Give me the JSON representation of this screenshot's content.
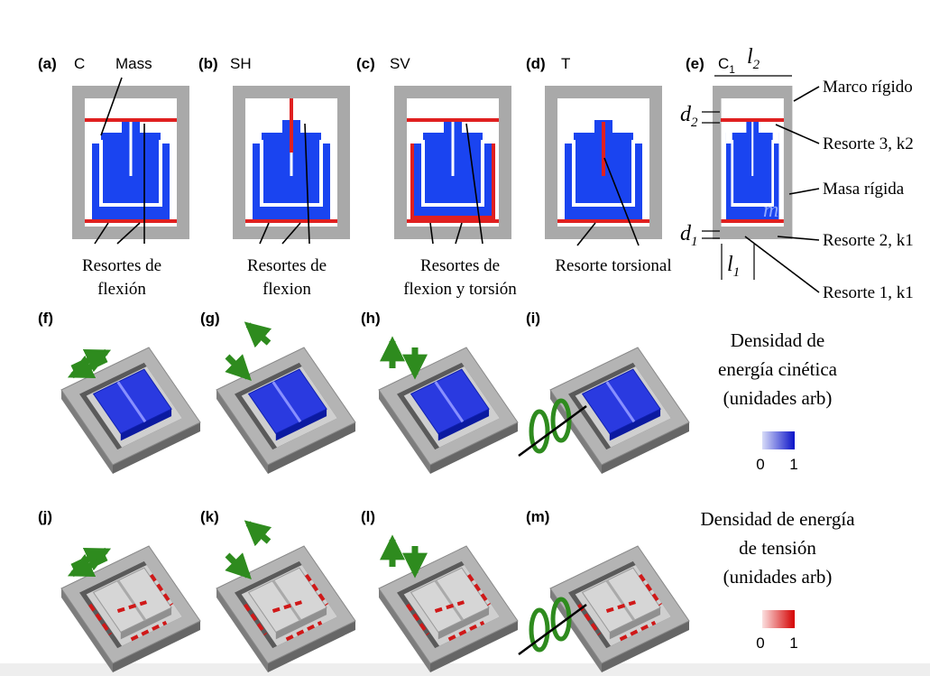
{
  "panels_top": [
    {
      "label": "(a)",
      "mode": "C",
      "note": "Mass",
      "caption": [
        "Resortes de",
        "flexión"
      ]
    },
    {
      "label": "(b)",
      "mode": "SH",
      "caption": [
        "Resortes de",
        "flexion"
      ]
    },
    {
      "label": "(c)",
      "mode": "SV",
      "caption": [
        "Resortes de",
        "flexion y torsión"
      ]
    },
    {
      "label": "(d)",
      "mode": "T",
      "caption": [
        "Resorte torsional"
      ]
    }
  ],
  "panel_e": {
    "label": "(e)",
    "mode": "C",
    "mode_sub": "1",
    "dims": [
      {
        "symbol": "l",
        "sub": "2"
      },
      {
        "symbol": "d",
        "sub": "2"
      },
      {
        "symbol": "d",
        "sub": "1"
      },
      {
        "symbol": "l",
        "sub": "1"
      }
    ],
    "mass_symbol": "m",
    "labels": [
      "Marco rígido",
      "Resorte 3, k2",
      "Masa rígida",
      "Resorte 2, k1",
      "Resorte 1, k1"
    ]
  },
  "panels_bottom": [
    "(f)",
    "(g)",
    "(h)",
    "(i)",
    "(j)",
    "(k)",
    "(l)",
    "(m)"
  ],
  "legends": [
    {
      "title": [
        "Densidad de",
        "energía cinética",
        "(unidades arb)"
      ],
      "min": "0",
      "max": "1"
    },
    {
      "title": [
        "Densidad de energía",
        "de tensión",
        "(unidades arb)"
      ],
      "min": "0",
      "max": "1"
    }
  ]
}
